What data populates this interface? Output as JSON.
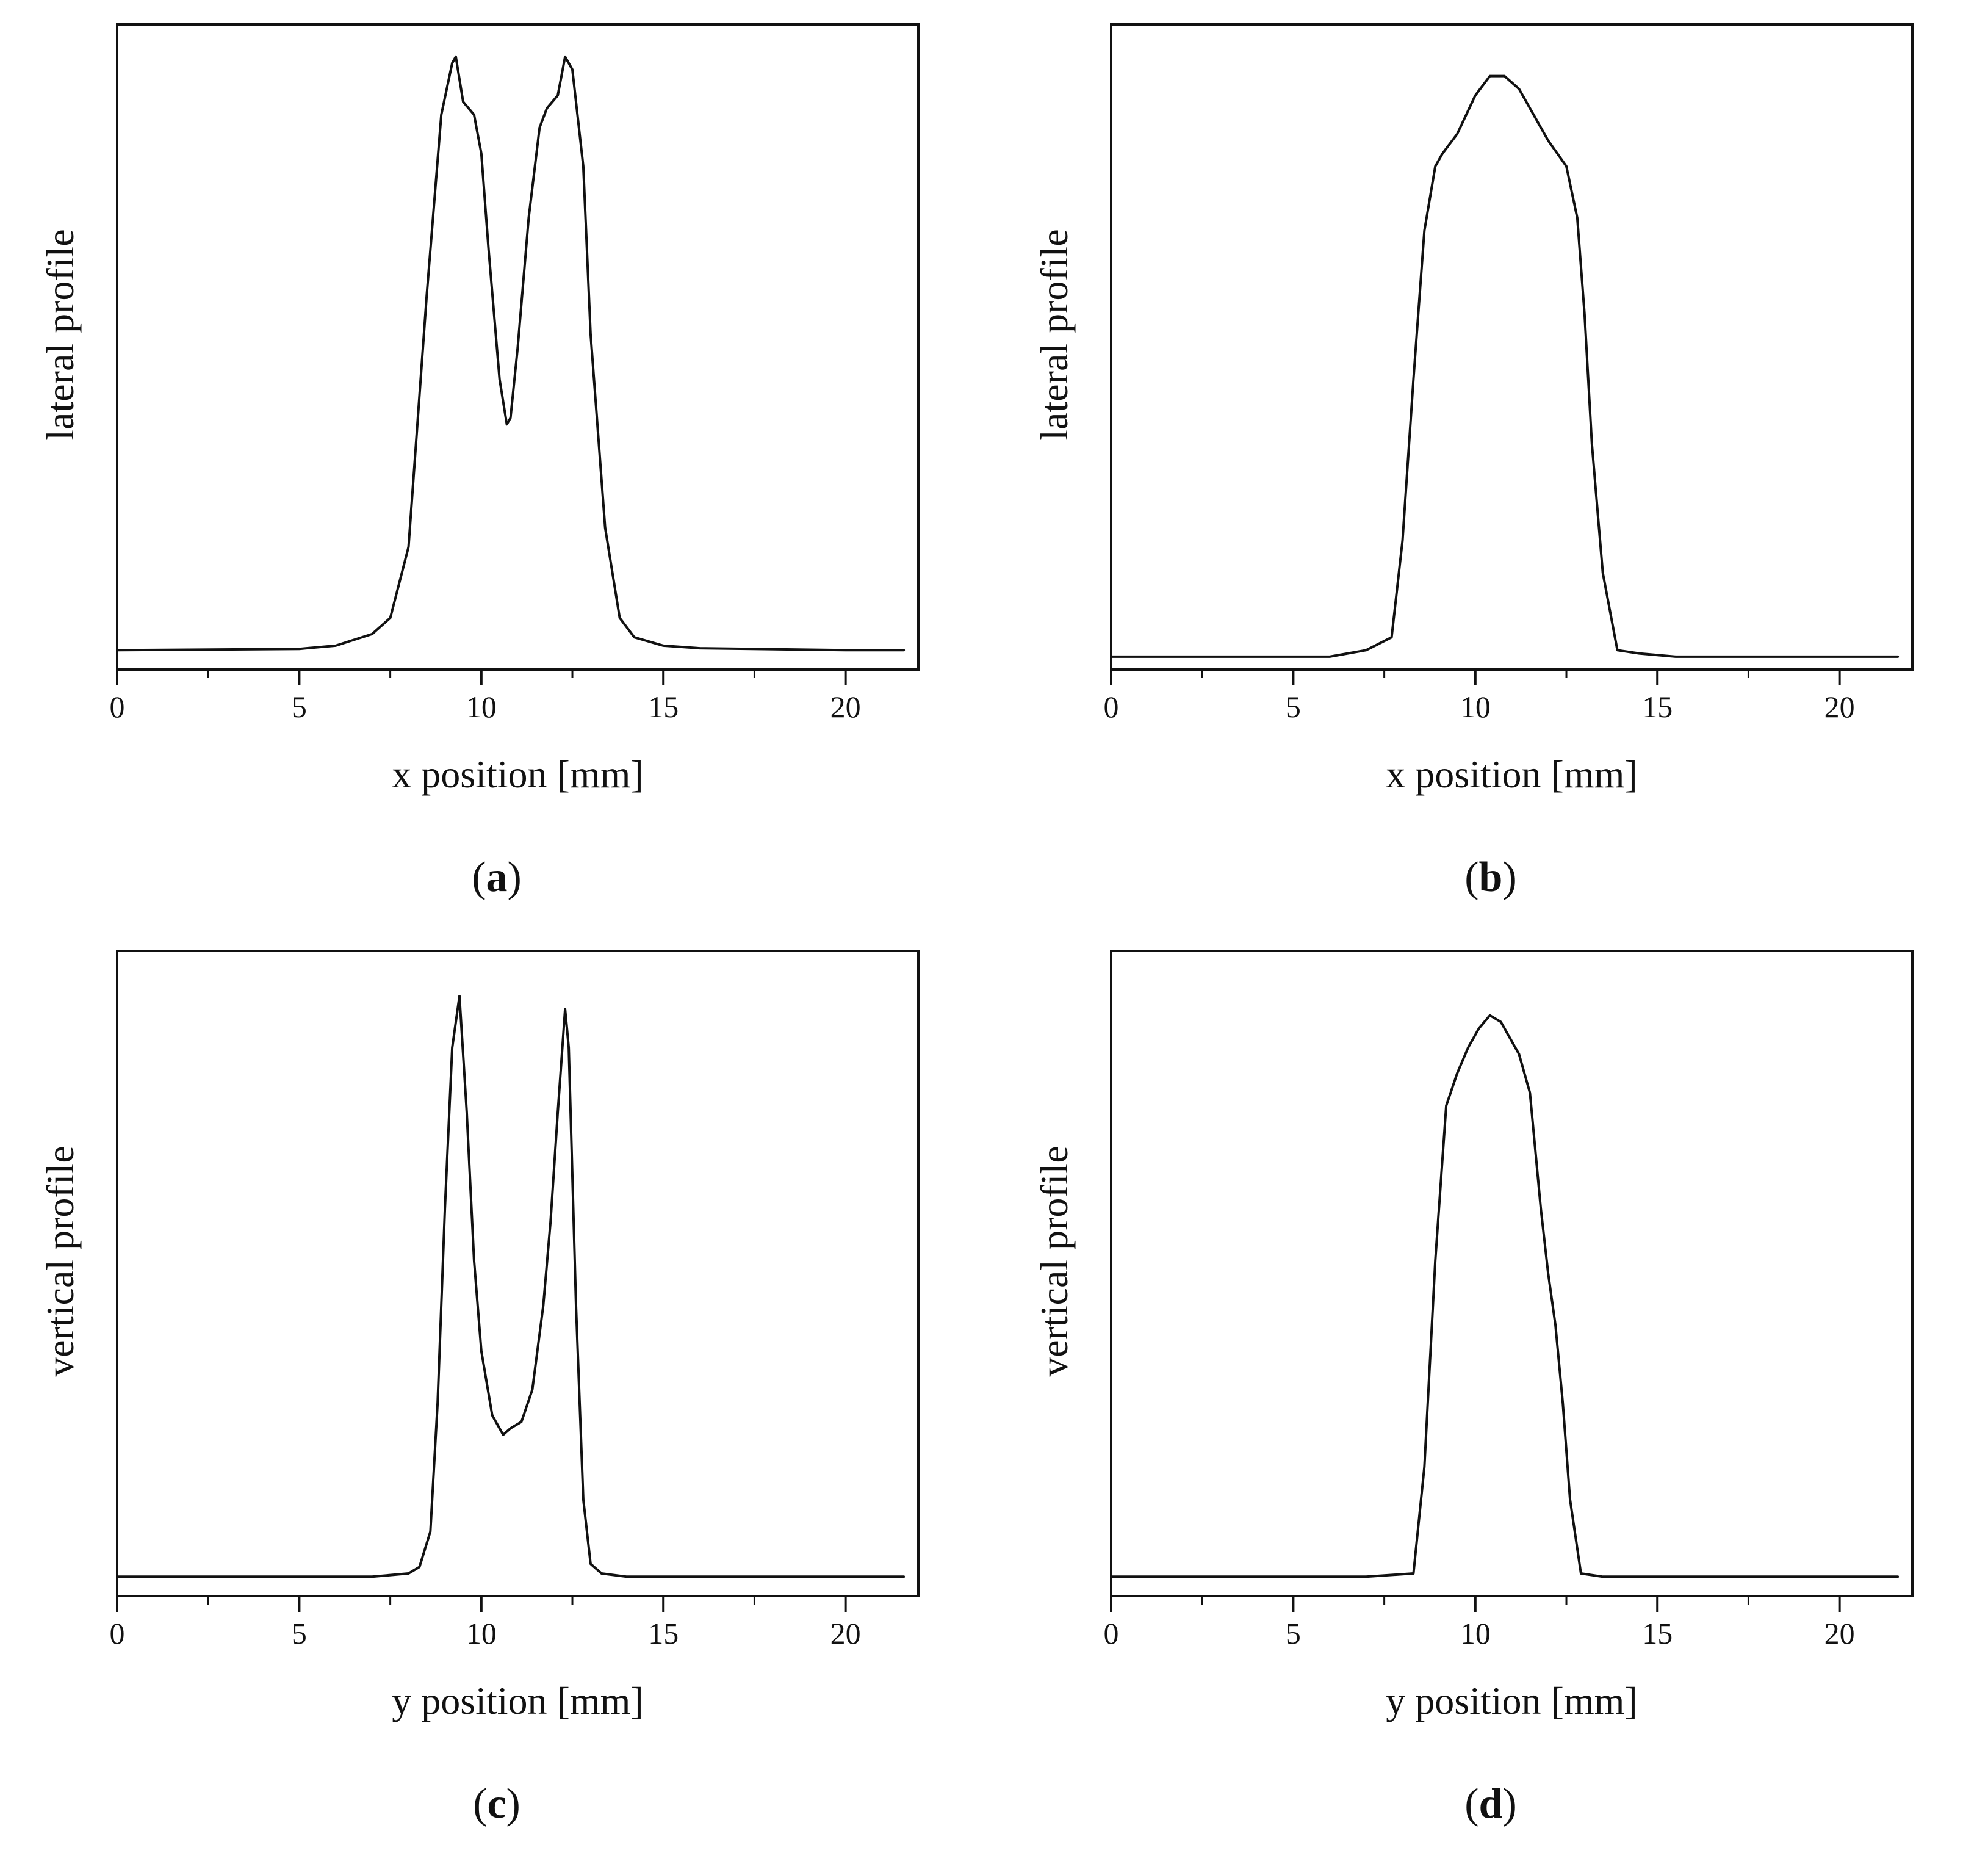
{
  "chart_data": [
    {
      "panel_label": "(a)",
      "panel_letter": "a",
      "type": "line",
      "xlabel": "x position [mm]",
      "ylabel": "lateral profile",
      "xlim": [
        0,
        22
      ],
      "ylim": [
        0,
        1.0
      ],
      "xticks": [
        0,
        5,
        10,
        15,
        20
      ],
      "yticks": [],
      "series": [
        {
          "x": [
            0,
            5,
            6,
            7,
            7.5,
            8,
            8.5,
            8.9,
            9.2,
            9.3,
            9.5,
            9.8,
            10.0,
            10.2,
            10.5,
            10.7,
            10.8,
            11.0,
            11.3,
            11.6,
            11.8,
            12.1,
            12.3,
            12.5,
            12.8,
            13.0,
            13.4,
            13.8,
            14.2,
            15.0,
            16.0,
            20.0,
            21.6
          ],
          "y": [
            0.03,
            0.032,
            0.037,
            0.055,
            0.08,
            0.19,
            0.58,
            0.86,
            0.94,
            0.95,
            0.88,
            0.86,
            0.8,
            0.65,
            0.45,
            0.38,
            0.39,
            0.5,
            0.7,
            0.84,
            0.87,
            0.89,
            0.95,
            0.93,
            0.78,
            0.52,
            0.22,
            0.08,
            0.05,
            0.037,
            0.033,
            0.03,
            0.03
          ]
        }
      ]
    },
    {
      "panel_label": "(b)",
      "panel_letter": "b",
      "type": "line",
      "xlabel": "x position [mm]",
      "ylabel": "lateral profile",
      "xlim": [
        0,
        22
      ],
      "ylim": [
        0,
        1.0
      ],
      "xticks": [
        0,
        5,
        10,
        15,
        20
      ],
      "yticks": [],
      "series": [
        {
          "x": [
            0,
            5,
            6,
            7,
            7.7,
            8.0,
            8.3,
            8.6,
            8.9,
            9.1,
            9.5,
            10.0,
            10.4,
            10.8,
            11.2,
            11.6,
            12.0,
            12.5,
            12.8,
            13.0,
            13.2,
            13.5,
            13.9,
            14.5,
            15.5,
            21.6
          ],
          "y": [
            0.02,
            0.02,
            0.02,
            0.03,
            0.05,
            0.2,
            0.45,
            0.68,
            0.78,
            0.8,
            0.83,
            0.89,
            0.92,
            0.92,
            0.9,
            0.86,
            0.82,
            0.78,
            0.7,
            0.55,
            0.35,
            0.15,
            0.03,
            0.025,
            0.02,
            0.02
          ]
        }
      ]
    },
    {
      "panel_label": "(c)",
      "panel_letter": "c",
      "type": "line",
      "xlabel": "y position [mm]",
      "ylabel": "vertical profile",
      "xlim": [
        0,
        22
      ],
      "ylim": [
        0,
        1.0
      ],
      "xticks": [
        0,
        5,
        10,
        15,
        20
      ],
      "yticks": [],
      "series": [
        {
          "x": [
            0,
            7,
            8,
            8.3,
            8.6,
            8.8,
            9.0,
            9.2,
            9.4,
            9.6,
            9.8,
            10.0,
            10.3,
            10.6,
            10.8,
            11.1,
            11.4,
            11.7,
            11.9,
            12.1,
            12.3,
            12.4,
            12.6,
            12.8,
            13.0,
            13.3,
            14.0,
            21.6
          ],
          "y": [
            0.03,
            0.03,
            0.035,
            0.045,
            0.1,
            0.3,
            0.6,
            0.85,
            0.93,
            0.75,
            0.52,
            0.38,
            0.28,
            0.25,
            0.26,
            0.27,
            0.32,
            0.45,
            0.58,
            0.75,
            0.91,
            0.85,
            0.45,
            0.15,
            0.05,
            0.035,
            0.03,
            0.03
          ]
        }
      ]
    },
    {
      "panel_label": "(d)",
      "panel_letter": "d",
      "type": "line",
      "xlabel": "y position [mm]",
      "ylabel": "vertical profile",
      "xlim": [
        0,
        22
      ],
      "ylim": [
        0,
        1.0
      ],
      "xticks": [
        0,
        5,
        10,
        15,
        20
      ],
      "yticks": [],
      "series": [
        {
          "x": [
            0,
            5,
            7,
            8.3,
            8.6,
            8.9,
            9.2,
            9.5,
            9.8,
            10.1,
            10.4,
            10.7,
            10.9,
            11.2,
            11.5,
            11.8,
            12.0,
            12.2,
            12.4,
            12.6,
            12.9,
            13.5,
            21.6
          ],
          "y": [
            0.03,
            0.03,
            0.03,
            0.035,
            0.2,
            0.52,
            0.76,
            0.81,
            0.85,
            0.88,
            0.9,
            0.89,
            0.87,
            0.84,
            0.78,
            0.6,
            0.5,
            0.42,
            0.3,
            0.15,
            0.035,
            0.03,
            0.03
          ]
        }
      ]
    }
  ]
}
